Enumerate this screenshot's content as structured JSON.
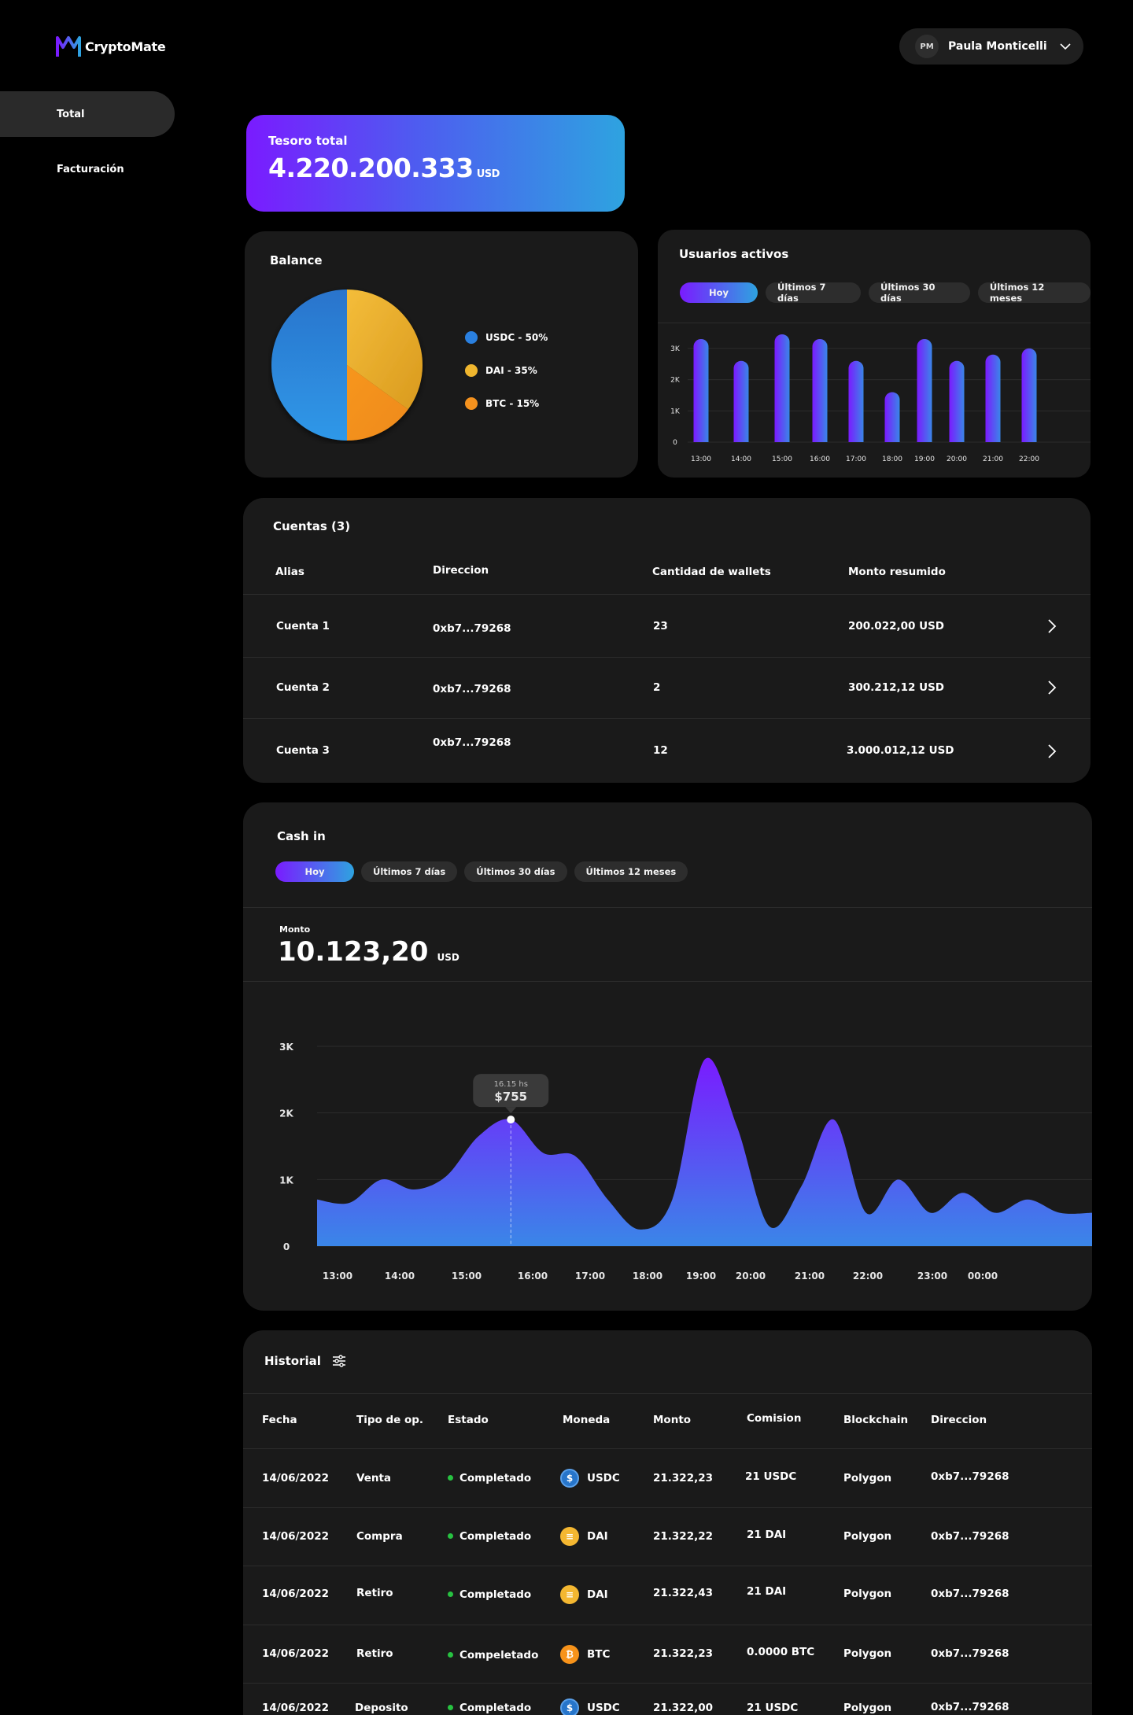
{
  "app": {
    "logo_text": "CryptoMate"
  },
  "user": {
    "initials": "PM",
    "name": "Paula Monticelli"
  },
  "sidebar": {
    "items": [
      {
        "label": "Total"
      },
      {
        "label": "Facturación"
      }
    ]
  },
  "treasury": {
    "label": "Tesoro total",
    "value": "4.220.200.333",
    "unit": "USD"
  },
  "balance": {
    "title": "Balance",
    "legend": [
      {
        "label": "USDC - 50%",
        "color": "#2a80e0"
      },
      {
        "label": "DAI - 35%",
        "color": "#f0b62e"
      },
      {
        "label": "BTC - 15%",
        "color": "#f5921e"
      }
    ]
  },
  "active_users": {
    "title": "Usuarios activos",
    "tabs": [
      "Hoy",
      "Últimos 7 días",
      "Últimos 30 días",
      "Últimos 12 meses"
    ],
    "y_ticks": [
      "3K",
      "2K",
      "1K",
      "0"
    ],
    "x_ticks": [
      "13:00",
      "14:00",
      "15:00",
      "16:00",
      "17:00",
      "18:00",
      "19:00",
      "20:00",
      "21:00",
      "22:00"
    ]
  },
  "accounts": {
    "title": "Cuentas (3)",
    "headers": [
      "Alias",
      "Direccion",
      "Cantidad de wallets",
      "Monto resumido"
    ],
    "rows": [
      {
        "alias": "Cuenta 1",
        "address": "0xb7...79268",
        "wallets": "23",
        "amount": "200.022,00 USD"
      },
      {
        "alias": "Cuenta 2",
        "address": "0xb7...79268",
        "wallets": "2",
        "amount": "300.212,12 USD"
      },
      {
        "alias": "Cuenta 3",
        "address": "0xb7...79268",
        "wallets": "12",
        "amount": "3.000.012,12 USD"
      }
    ]
  },
  "cashin": {
    "title": "Cash in",
    "tabs": [
      "Hoy",
      "Últimos 7 días",
      "Últimos 30 días",
      "Últimos 12 meses"
    ],
    "amount_label": "Monto",
    "amount": "10.123,20",
    "unit": "USD",
    "y_ticks": [
      "3K",
      "2K",
      "1K",
      "0"
    ],
    "x_ticks": [
      "13:00",
      "14:00",
      "15:00",
      "16:00",
      "17:00",
      "18:00",
      "19:00",
      "20:00",
      "21:00",
      "22:00",
      "23:00",
      "00:00"
    ],
    "tooltip": {
      "time": "16.15 hs",
      "value": "$755"
    }
  },
  "history": {
    "title": "Historial",
    "headers": [
      "Fecha",
      "Tipo de op.",
      "Estado",
      "Moneda",
      "Monto",
      "Comision",
      "Blockchain",
      "Direccion"
    ],
    "rows": [
      {
        "date": "14/06/2022",
        "type": "Venta",
        "status": "Completado",
        "coin": "USDC",
        "amount": "21.322,23",
        "fee": "21 USDC",
        "chain": "Polygon",
        "address": "0xb7...79268"
      },
      {
        "date": "14/06/2022",
        "type": "Compra",
        "status": "Completado",
        "coin": "DAI",
        "amount": "21.322,22",
        "fee": "21 DAI",
        "chain": "Polygon",
        "address": "0xb7...79268"
      },
      {
        "date": "14/06/2022",
        "type": "Retiro",
        "status": "Completado",
        "coin": "DAI",
        "amount": "21.322,43",
        "fee": "21 DAI",
        "chain": "Polygon",
        "address": "0xb7...79268"
      },
      {
        "date": "14/06/2022",
        "type": "Retiro",
        "status": "Compeletado",
        "coin": "BTC",
        "amount": "21.322,23",
        "fee": "0.0000 BTC",
        "chain": "Polygon",
        "address": "0xb7...79268"
      },
      {
        "date": "14/06/2022",
        "type": "Deposito",
        "status": "Completado",
        "coin": "USDC",
        "amount": "21.322,00",
        "fee": "21 USDC",
        "chain": "Polygon",
        "address": "0xb7...79268"
      }
    ]
  },
  "chart_data": [
    {
      "type": "pie",
      "labels": [
        "USDC",
        "DAI",
        "BTC"
      ],
      "values": [
        50,
        35,
        15
      ],
      "colors": [
        "#2a80e0",
        "#f0b62e",
        "#f5921e"
      ]
    },
    {
      "type": "bar",
      "categories": [
        "13:00",
        "14:00",
        "15:00",
        "16:00",
        "17:00",
        "18:00",
        "19:00",
        "20:00",
        "21:00",
        "22:00"
      ],
      "values": [
        3300,
        2600,
        3450,
        3300,
        2600,
        1600,
        3300,
        2600,
        2800,
        3000
      ],
      "ylim": [
        0,
        3500
      ]
    },
    {
      "type": "area",
      "x": [
        "13:00",
        "13:30",
        "14:00",
        "14:30",
        "15:00",
        "15:30",
        "16:00",
        "16:30",
        "17:00",
        "17:30",
        "18:00",
        "18:30",
        "19:00",
        "19:30",
        "20:00",
        "20:30",
        "21:00",
        "21:30",
        "22:00",
        "22:30",
        "23:00",
        "23:30",
        "00:00",
        "00:30",
        "01:00"
      ],
      "values": [
        700,
        650,
        1000,
        850,
        1050,
        1650,
        1900,
        1400,
        1350,
        700,
        250,
        700,
        2800,
        1800,
        300,
        900,
        1900,
        500,
        1000,
        500,
        800,
        500,
        700,
        500,
        500
      ],
      "ylim": [
        0,
        3000
      ]
    }
  ]
}
